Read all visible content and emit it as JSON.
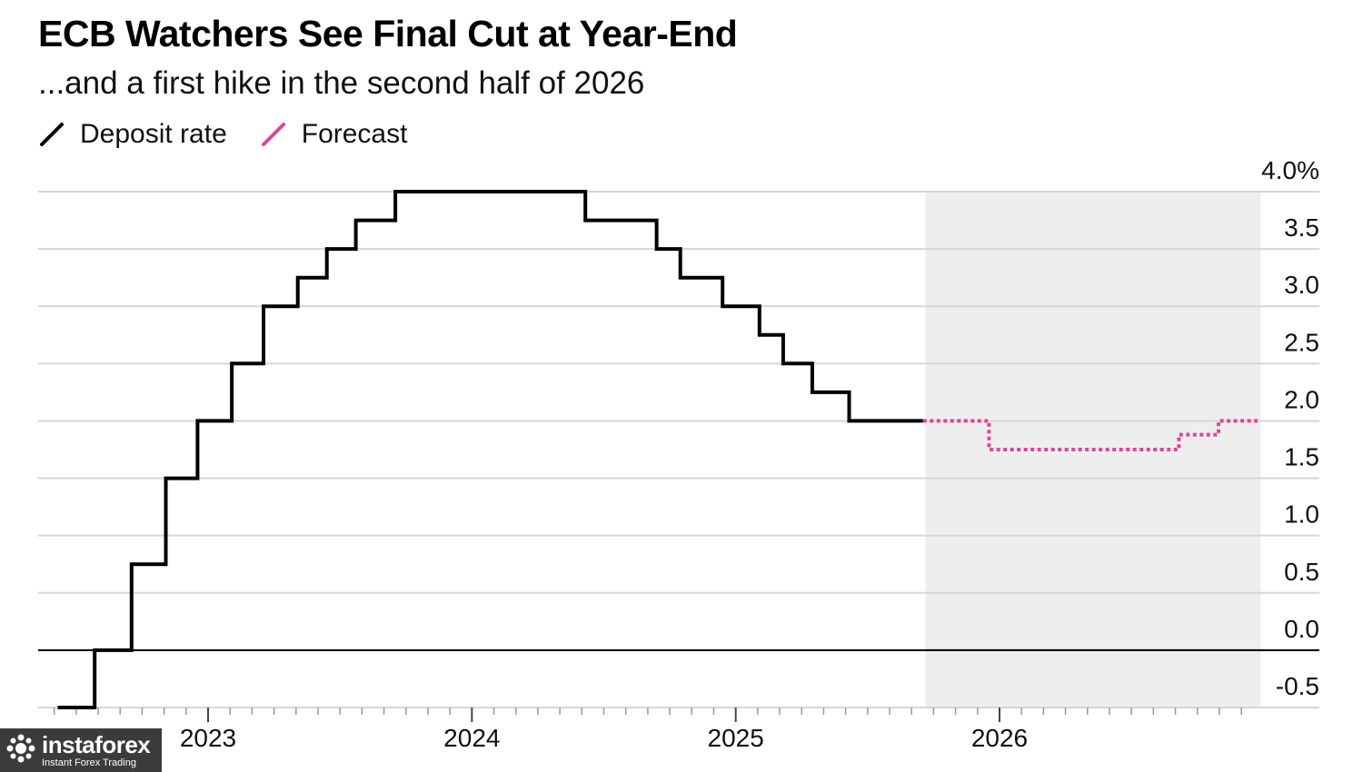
{
  "header": {
    "title": "ECB Watchers See Final Cut at Year-End",
    "subtitle": "...and a first hike in the second half of 2026"
  },
  "legend": [
    {
      "label": "Deposit rate",
      "color": "#000000",
      "style": "solid"
    },
    {
      "label": "Forecast",
      "color": "#e0449a",
      "style": "dotted"
    }
  ],
  "colors": {
    "grid": "#d6d6d6",
    "zero_line": "#000000",
    "forecast_shade": "#eeeeee",
    "deposit_line": "#000000",
    "forecast_line": "#e0449a"
  },
  "watermark": {
    "name": "instaforex",
    "tagline": "Instant Forex Trading",
    "icon": "instaforex-logo-icon"
  },
  "chart_data": {
    "type": "line",
    "step": true,
    "title": "ECB Watchers See Final Cut at Year-End",
    "subtitle": "...and a first hike in the second half of 2026",
    "xlabel": "",
    "ylabel": "",
    "x_ticks": [
      "2023",
      "2024",
      "2025",
      "2026"
    ],
    "x_tick_values": [
      2023,
      2024,
      2025,
      2026
    ],
    "xlim": [
      2022.41,
      2026.93
    ],
    "y_ticks": [
      "4.0%",
      "3.5",
      "3.0",
      "2.5",
      "2.0",
      "1.5",
      "1.0",
      "0.5",
      "0.0",
      "-0.5"
    ],
    "y_tick_values": [
      4.0,
      3.5,
      3.0,
      2.5,
      2.0,
      1.5,
      1.0,
      0.5,
      0.0,
      -0.5
    ],
    "ylim": [
      -0.5,
      4.0
    ],
    "grid": true,
    "y_axis_side": "right",
    "legend_position": "top-left",
    "forecast_region_start": 2025.72,
    "forecast_region_end": 2026.99,
    "series": [
      {
        "name": "Deposit rate",
        "style": "solid",
        "points": [
          [
            2022.43,
            -0.5
          ],
          [
            2022.57,
            0.0
          ],
          [
            2022.71,
            0.75
          ],
          [
            2022.84,
            1.5
          ],
          [
            2022.96,
            2.0
          ],
          [
            2023.09,
            2.5
          ],
          [
            2023.21,
            3.0
          ],
          [
            2023.34,
            3.25
          ],
          [
            2023.45,
            3.5
          ],
          [
            2023.56,
            3.75
          ],
          [
            2023.71,
            4.0
          ],
          [
            2024.43,
            3.75
          ],
          [
            2024.7,
            3.5
          ],
          [
            2024.79,
            3.25
          ],
          [
            2024.95,
            3.0
          ],
          [
            2025.09,
            2.75
          ],
          [
            2025.18,
            2.5
          ],
          [
            2025.29,
            2.25
          ],
          [
            2025.43,
            2.0
          ],
          [
            2025.71,
            2.0
          ]
        ]
      },
      {
        "name": "Forecast",
        "style": "dotted",
        "points": [
          [
            2025.71,
            2.0
          ],
          [
            2025.96,
            1.75
          ],
          [
            2026.68,
            1.88
          ],
          [
            2026.83,
            2.0
          ],
          [
            2026.98,
            2.0
          ]
        ]
      }
    ]
  }
}
